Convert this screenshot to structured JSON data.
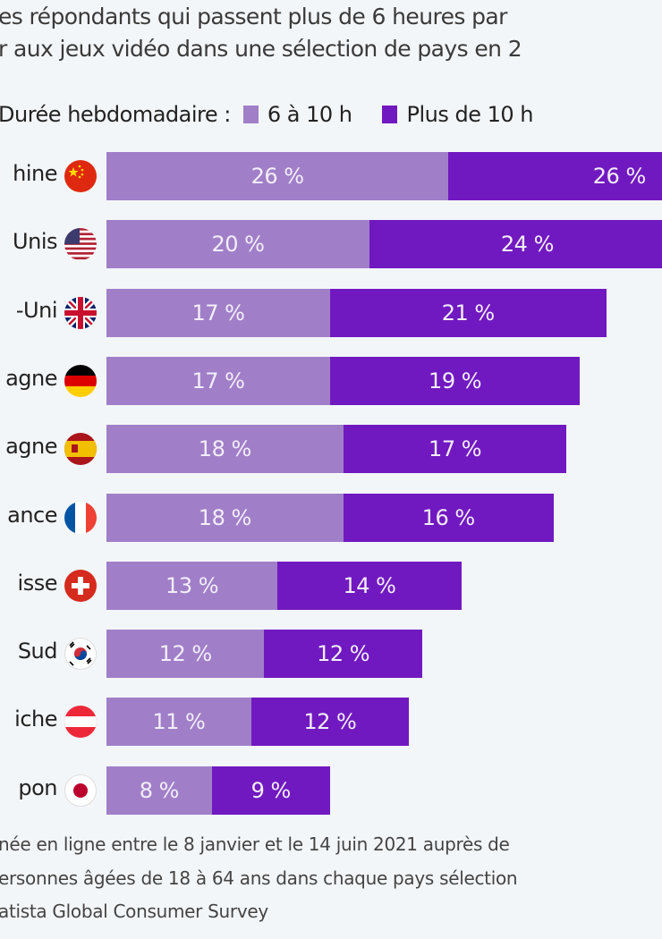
{
  "chart_data": {
    "type": "bar",
    "orientation": "horizontal",
    "stacked": true,
    "title": [
      "es répondants qui passent plus de 6 heures par",
      "r aux jeux vidéo dans une sélection de pays en 2"
    ],
    "legend_title": "Durée hebdomadaire :",
    "legend_position": "top",
    "categories": [
      "hine",
      "Unis",
      "-Uni",
      "agne",
      "agne",
      "ance",
      "isse",
      "Sud",
      "iche",
      "pon"
    ],
    "flags": [
      "china",
      "usa",
      "uk",
      "germany",
      "spain",
      "france",
      "switzerland",
      "south-korea",
      "austria",
      "japan"
    ],
    "series": [
      {
        "name": "6 à 10 h",
        "color": "#a07fc8",
        "values": [
          26,
          20,
          17,
          17,
          18,
          18,
          13,
          12,
          11,
          8
        ]
      },
      {
        "name": "Plus de 10 h",
        "color": "#7119c0",
        "values": [
          26,
          24,
          21,
          19,
          17,
          16,
          14,
          12,
          12,
          9
        ]
      }
    ],
    "value_suffix": " %",
    "grid": false
  },
  "footer": [
    "née en ligne entre le 8 janvier et le 14 juin 2021 auprès de",
    "ersonnes âgées de 18 à 64 ans dans chaque pays sélection",
    "atista Global Consumer Survey"
  ]
}
